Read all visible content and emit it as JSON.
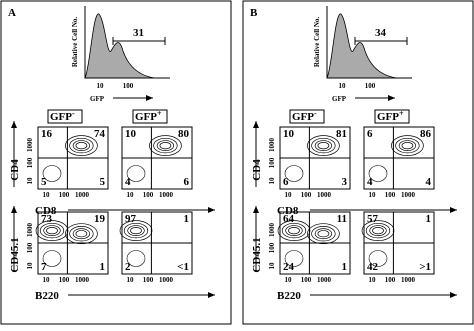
{
  "panels": [
    {
      "label": "A",
      "histogram": {
        "y_label": "Relative Cell No.",
        "x_label": "GFP",
        "gate_value": "31",
        "x_ticks": [
          "10",
          "100"
        ]
      },
      "gate_labels": [
        {
          "name": "GFP",
          "sign": "-"
        },
        {
          "name": "GFP",
          "sign": "+"
        }
      ],
      "rows": [
        {
          "y_label": "CD4",
          "x_label": "CD8",
          "ticks": [
            "10",
            "100",
            "1000"
          ],
          "plots": [
            {
              "quadrants": [
                "16",
                "74",
                "5",
                "5"
              ]
            },
            {
              "quadrants": [
                "10",
                "80",
                "4",
                "6"
              ]
            }
          ]
        },
        {
          "y_label": "CD45.1",
          "x_label": "B220",
          "ticks": [
            "10",
            "100",
            "1000"
          ],
          "plots": [
            {
              "quadrants": [
                "73",
                "19",
                "7",
                "1"
              ]
            },
            {
              "quadrants": [
                "97",
                "1",
                "2",
                "<1"
              ]
            }
          ]
        }
      ]
    },
    {
      "label": "B",
      "histogram": {
        "y_label": "Relative Cell No.",
        "x_label": "GFP",
        "gate_value": "34",
        "x_ticks": [
          "10",
          "100"
        ]
      },
      "gate_labels": [
        {
          "name": "GFP",
          "sign": "-"
        },
        {
          "name": "GFP",
          "sign": "+"
        }
      ],
      "rows": [
        {
          "y_label": "CD4",
          "x_label": "CD8",
          "ticks": [
            "10",
            "100",
            "1000"
          ],
          "plots": [
            {
              "quadrants": [
                "10",
                "81",
                "6",
                "3"
              ]
            },
            {
              "quadrants": [
                "6",
                "86",
                "4",
                "4"
              ]
            }
          ]
        },
        {
          "y_label": "CD45.1",
          "x_label": "B220",
          "ticks": [
            "10",
            "100",
            "1000"
          ],
          "plots": [
            {
              "quadrants": [
                "64",
                "11",
                "24",
                "1"
              ]
            },
            {
              "quadrants": [
                "57",
                "1",
                "42",
                ">1"
              ]
            }
          ]
        }
      ]
    }
  ]
}
